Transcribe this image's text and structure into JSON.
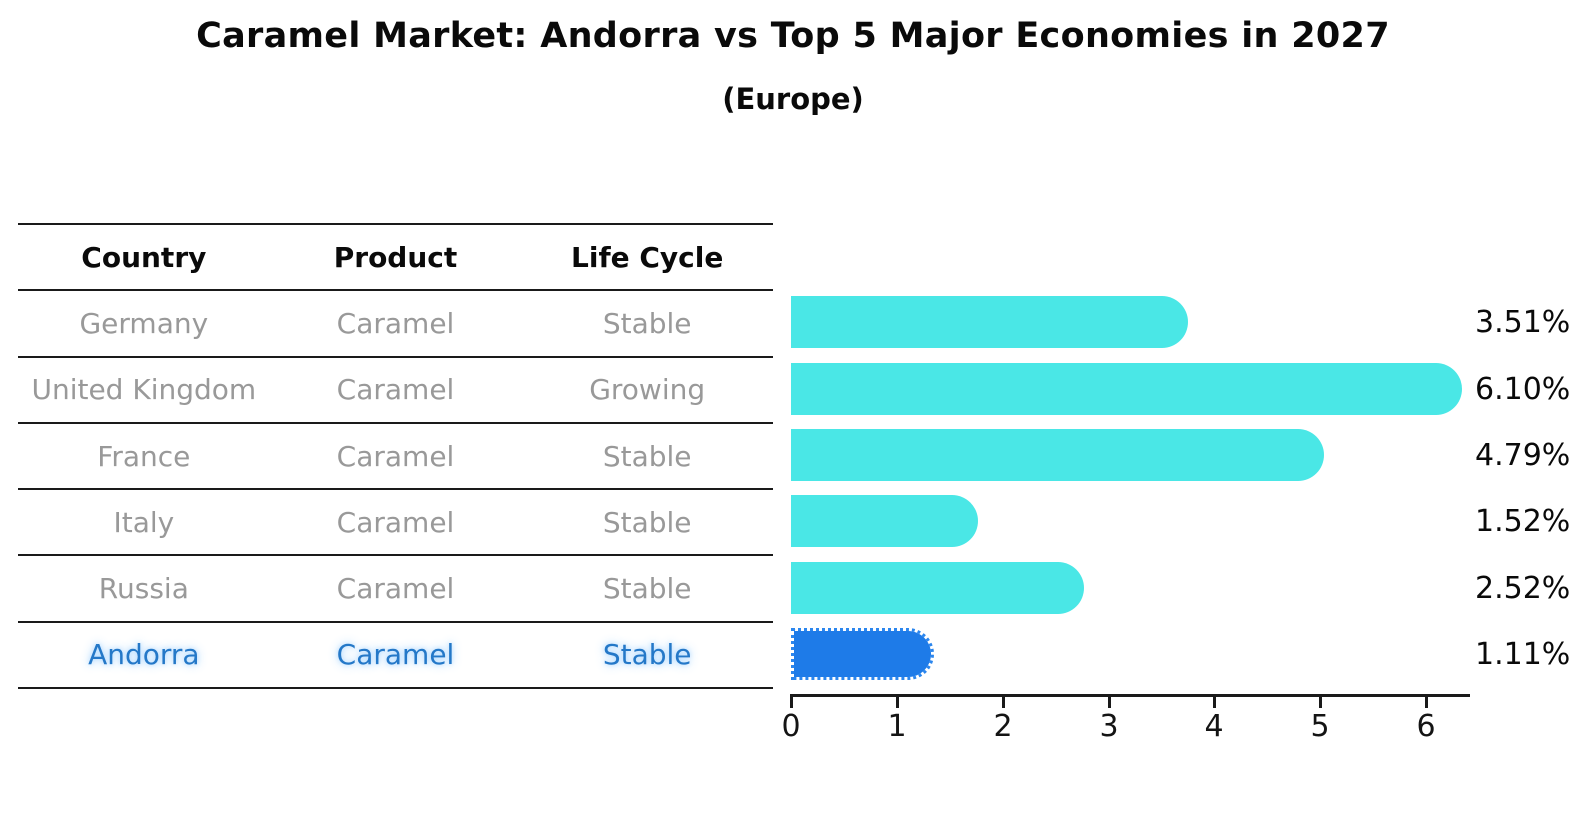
{
  "title": "Caramel Market: Andorra vs Top 5 Major Economies in 2027",
  "subtitle": "(Europe)",
  "table": {
    "headers": [
      "Country",
      "Product",
      "Life Cycle"
    ],
    "rows": [
      {
        "country": "Germany",
        "product": "Caramel",
        "life_cycle": "Stable"
      },
      {
        "country": "United Kingdom",
        "product": "Caramel",
        "life_cycle": "Growing"
      },
      {
        "country": "France",
        "product": "Caramel",
        "life_cycle": "Stable"
      },
      {
        "country": "Italy",
        "product": "Caramel",
        "life_cycle": "Stable"
      },
      {
        "country": "Russia",
        "product": "Caramel",
        "life_cycle": "Stable"
      },
      {
        "country": "Andorra",
        "product": "Caramel",
        "life_cycle": "Stable"
      }
    ],
    "highlight_row": "Andorra"
  },
  "chart_data": {
    "type": "bar",
    "orientation": "horizontal",
    "title": "Caramel Market: Andorra vs Top 5 Major Economies in 2027",
    "subtitle": "(Europe)",
    "categories": [
      "Germany",
      "United Kingdom",
      "France",
      "Italy",
      "Russia",
      "Andorra"
    ],
    "values": [
      3.51,
      6.1,
      4.79,
      1.52,
      2.52,
      1.11
    ],
    "value_labels": [
      "3.51%",
      "6.10%",
      "4.79%",
      "1.52%",
      "2.52%",
      "1.11%"
    ],
    "x_ticks": [
      "0",
      "1",
      "2",
      "3",
      "4",
      "5",
      "6"
    ],
    "xlim": [
      0,
      6.4
    ],
    "grid": false,
    "legend": false,
    "bar_color": "#4AE7E6",
    "highlight_bar_color": "#1E7BE8",
    "highlight_index": 5
  },
  "colors": {
    "background": "#FFFFFF",
    "bar_cyan": "#4AE7E6",
    "bar_blue": "#1E7BE8",
    "highlight_text": "#2478C8",
    "table_text_gray": "#999999",
    "axis_black": "#1A1A1A"
  }
}
